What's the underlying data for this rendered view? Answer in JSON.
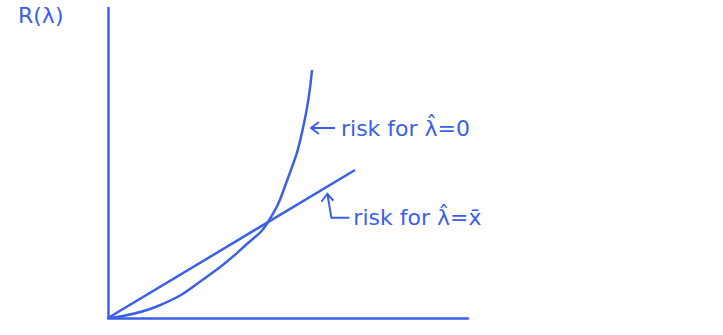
{
  "chart_data": {
    "type": "line",
    "y_label": "R(λ)",
    "tick_labels": false,
    "grid": false,
    "xlim": [
      0,
      3.6
    ],
    "ylim": [
      0,
      3.1
    ],
    "series": [
      {
        "name": "risk for λ̂=0",
        "color": "#3b5fe8",
        "x": [
          0,
          0.5,
          1.0,
          1.4,
          1.6,
          1.8,
          1.95,
          2.04
        ],
        "values": [
          0,
          0.12,
          0.42,
          0.75,
          0.96,
          1.4,
          1.9,
          2.48
        ]
      },
      {
        "name": "risk for λ̂=x̄",
        "color": "#3b5fe8",
        "x": [
          0,
          2.47
        ],
        "values": [
          0,
          1.48
        ]
      }
    ]
  }
}
